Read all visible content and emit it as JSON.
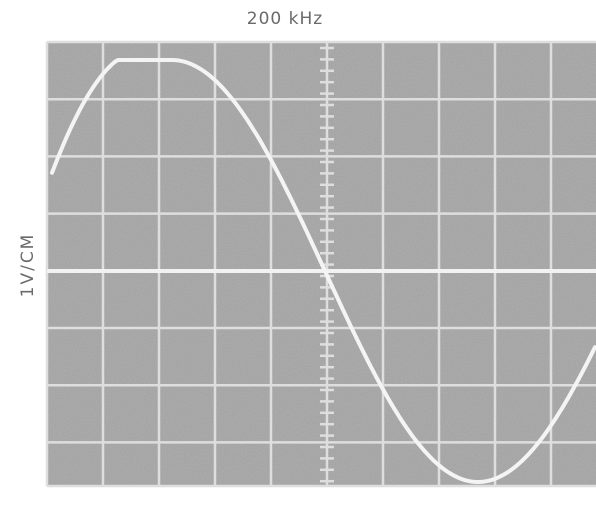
{
  "header": {
    "title": "200 kHz"
  },
  "axis": {
    "label": "1V/CM"
  }
}
